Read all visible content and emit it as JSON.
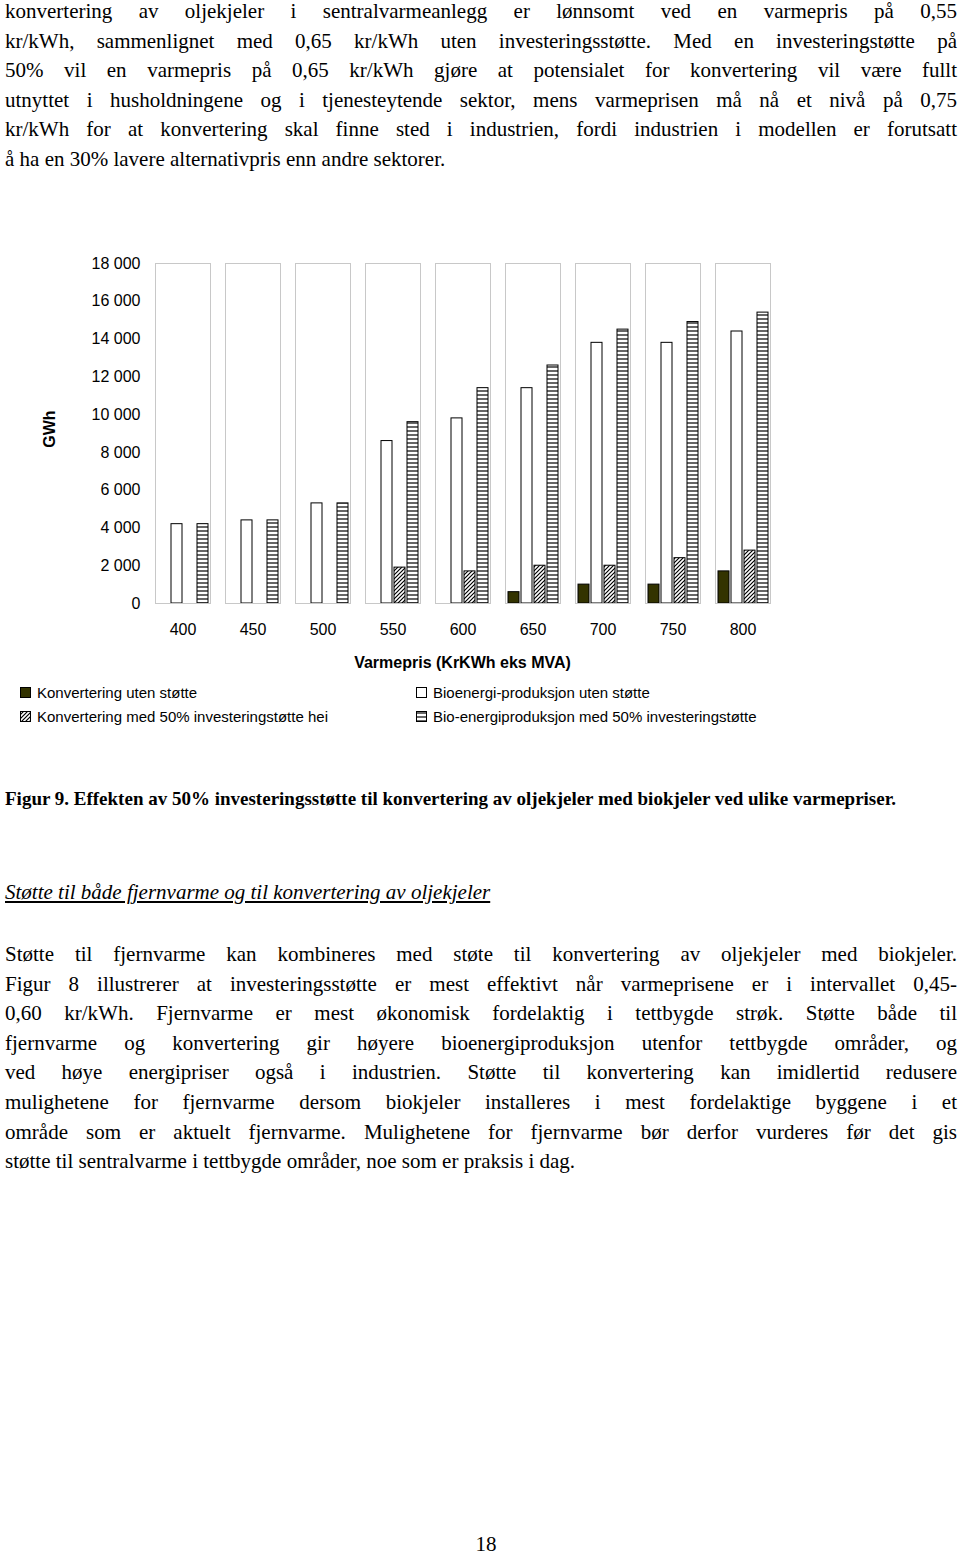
{
  "document": {
    "paragraph_top": [
      "konvertering av oljekjeler i sentralvarmeanlegg er lønnsomt ved en varmepris på 0,55",
      "kr/kWh, sammenlignet med 0,65 kr/kWh uten investeringsstøtte. Med en investeringstøtte på",
      "50% vil en varmepris på 0,65 kr/kWh gjøre at potensialet for konvertering vil være fullt",
      "utnyttet i husholdningene og i tjenesteytende sektor, mens varmeprisen må nå et nivå på 0,75",
      "kr/kWh for at konvertering skal finne sted i industrien, fordi industrien i modellen er forutsatt",
      "å ha en 30% lavere alternativpris enn andre sektorer."
    ],
    "section_heading": "Støtte til både fjernvarme og til konvertering av oljekjeler",
    "paragraph": [
      "Støtte til fjernvarme kan kombineres med støte til konvertering av oljekjeler med biokjeler.",
      "Figur 8 illustrerer at investeringsstøtte er mest effektivt når varmeprisene er i intervallet 0,45-",
      "0,60 kr/kWh.  Fjernvarme er mest økonomisk fordelaktig i tettbygde strøk. Støtte både til",
      "fjernvarme og  konvertering gir høyere bioenergiproduksjon utenfor tettbygde områder, og",
      "ved høye energipriser også i industrien. Støtte til konvertering kan imidlertid redusere",
      "mulighetene for fjernvarme dersom biokjeler installeres i mest fordelaktige byggene i et",
      "område som er aktuelt fjernvarme. Mulighetene for fjernvarme bør derfor vurderes før det gis",
      "støtte til sentralvarme i tettbygde områder, noe som er praksis i dag."
    ],
    "page_number": "18"
  },
  "chart_data": {
    "type": "bar",
    "title": "Figur 9. Effekten av 50% investeringsstøtte til konvertering av oljekjeler med biokjeler ved ulike varmepriser.",
    "x_label": "Varmepris (KrKWh eks MVA)",
    "y_label": "GWh",
    "categories": [
      "400",
      "450",
      "500",
      "550",
      "600",
      "650",
      "700",
      "750",
      "800"
    ],
    "series": [
      {
        "name": "Konvertering uten støtte",
        "color": "#333300",
        "values": [
          0,
          0,
          0,
          0,
          0,
          600,
          1000,
          1000,
          1700
        ]
      },
      {
        "name": "Bioenergi-produksjon uten støtte",
        "color": "#ffffff",
        "values": [
          4200,
          4400,
          5300,
          8600,
          9800,
          11400,
          13800,
          13800,
          14400
        ]
      },
      {
        "name": "Konvertering med 50% investeringstøtte hei",
        "color": "#000000",
        "values": [
          0,
          0,
          0,
          1900,
          1700,
          2000,
          2000,
          2400,
          2800
        ]
      },
      {
        "name": "Bio-energiproduksjon med 50% investeringstøtte",
        "color": "#000000",
        "values": [
          4200,
          4400,
          5300,
          9600,
          11400,
          12600,
          14500,
          14900,
          15400
        ]
      }
    ],
    "ylim": [
      0,
      18000
    ],
    "yticks": [
      0,
      {
        "value": 2000,
        "label": "2 000"
      },
      {
        "value": 4000,
        "label": "4 000"
      },
      {
        "value": 6000,
        "label": "6 000"
      },
      {
        "value": 8000,
        "label": "8 000"
      },
      {
        "value": 10000,
        "label": "10 000"
      },
      {
        "value": 12000,
        "label": "12 000"
      },
      {
        "value": 14000,
        "label": "14 000"
      },
      {
        "value": 16000,
        "label": "16 000"
      },
      {
        "value": 18000,
        "label": "18 000"
      }
    ],
    "grid": false,
    "legend": "bottom"
  }
}
